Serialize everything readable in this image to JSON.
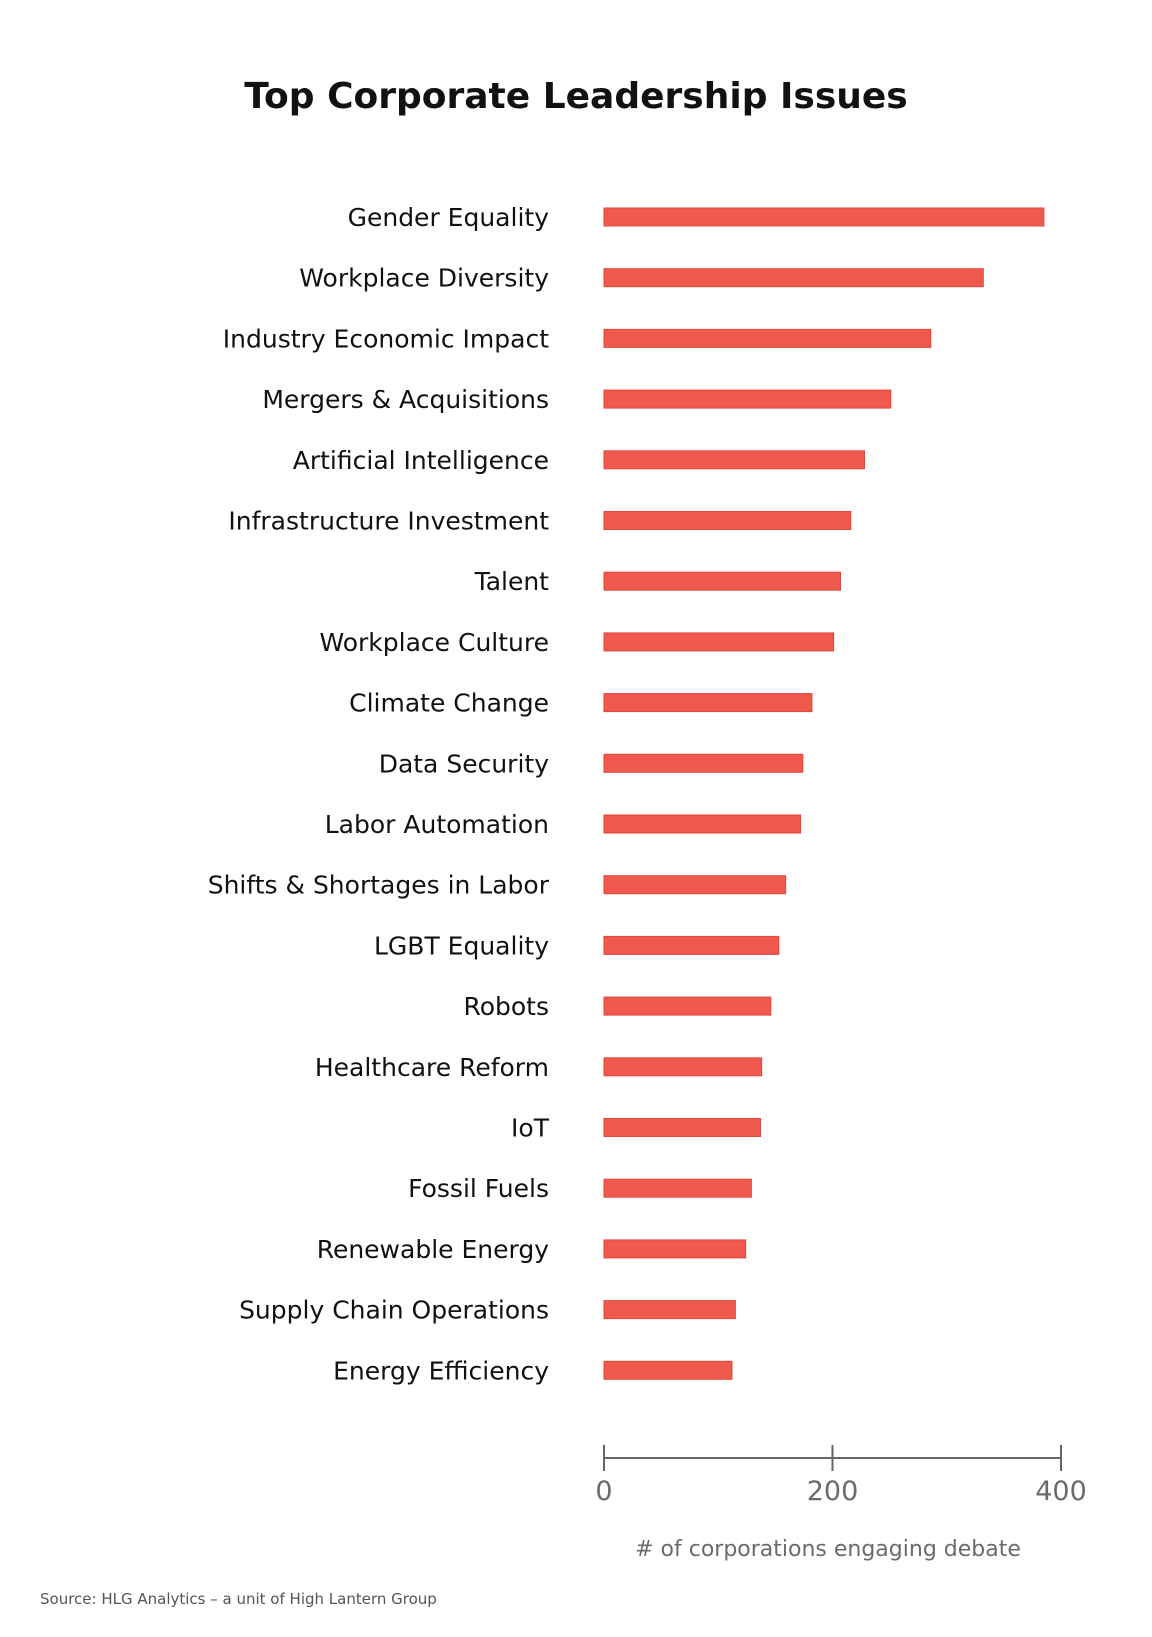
{
  "chart_data": {
    "type": "bar",
    "orientation": "horizontal",
    "title": "Top Corporate Leadership Issues",
    "xlabel": "# of corporations engaging debate",
    "ylabel": "",
    "xlim": [
      0,
      400
    ],
    "xticks": [
      0,
      200,
      400
    ],
    "grid": false,
    "bar_color": "#F05A4E",
    "categories": [
      "Gender Equality",
      "Workplace Diversity",
      "Industry Economic Impact",
      "Mergers & Acquisitions",
      "Artificial Intelligence",
      "Infrastructure Investment",
      "Talent",
      "Workplace Culture",
      "Climate Change",
      "Data Security",
      "Labor Automation",
      "Shifts & Shortages in Labor",
      "LGBT Equality",
      "Robots",
      "Healthcare Reform",
      "IoT",
      "Fossil Fuels",
      "Renewable Energy",
      "Supply Chain Operations",
      "Energy Efficiency"
    ],
    "values": [
      385,
      332,
      286,
      251,
      228,
      216,
      207,
      201,
      182,
      174,
      172,
      159,
      153,
      146,
      138,
      137,
      129,
      124,
      115,
      112
    ]
  },
  "source": "Source:  HLG Analytics – a unit of High Lantern Group"
}
